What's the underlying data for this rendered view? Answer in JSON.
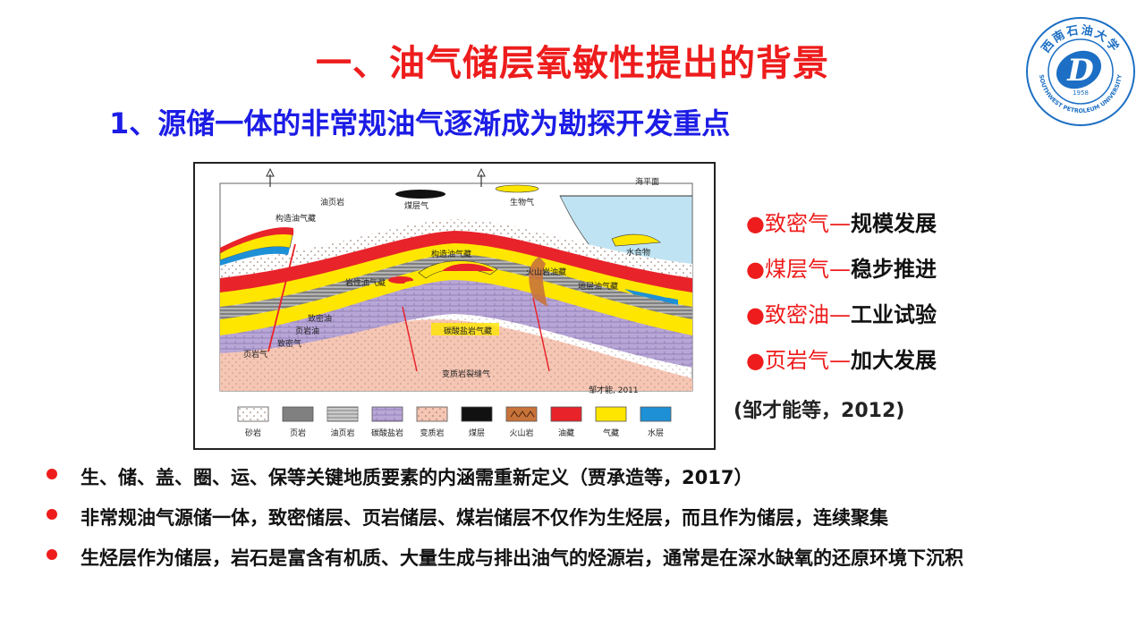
{
  "title": "一、油气储层氧敏性提出的背景",
  "subtitle": "1、源储一体的非常规油气逐渐成为勘探开发重点",
  "logo": {
    "top_text": "西南石油大学",
    "bottom_text": "SOUTHWEST PETROLEUM UNIVERSITY",
    "year": "1958",
    "letter": "D"
  },
  "figure": {
    "labels": {
      "sea_level": "海平面",
      "oil_shale": "油页岩",
      "coal_gas": "煤层气",
      "bio_gas": "生物气",
      "structural_pool_left": "构造油气藏",
      "hydrate": "水合物",
      "structural_pool_center": "构造油气藏",
      "volcanic_pool": "火山岩油藏",
      "lithologic_pool": "岩性油气藏",
      "stratigraphic_pool": "地层油气藏",
      "tight_oil": "致密油",
      "shale_oil": "页岩油",
      "tight_gas": "致密气",
      "shale_gas": "页岩气",
      "carbonate_gas": "碳酸盐岩气藏",
      "metamorphic_gas": "变质岩裂缝气",
      "author": "邹才能, 2011"
    },
    "legend": [
      {
        "label": "砂岩",
        "color": "#ffffff",
        "pattern": "dots"
      },
      {
        "label": "页岩",
        "color": "#808080",
        "pattern": "solid"
      },
      {
        "label": "油页岩",
        "color": "#a6a6a6",
        "pattern": "lines"
      },
      {
        "label": "碳酸盐岩",
        "color": "#b8a6d6",
        "pattern": "brick"
      },
      {
        "label": "变质岩",
        "color": "#f6c6b4",
        "pattern": "dots"
      },
      {
        "label": "煤层",
        "color": "#111111",
        "pattern": "solid"
      },
      {
        "label": "火山岩",
        "color": "#c8733a",
        "pattern": "carets"
      },
      {
        "label": "油藏",
        "color": "#e8232a",
        "pattern": "solid"
      },
      {
        "label": "气藏",
        "color": "#ffe600",
        "pattern": "solid"
      },
      {
        "label": "水层",
        "color": "#1e90d6",
        "pattern": "solid"
      }
    ]
  },
  "right_list": [
    {
      "red": "致密气—",
      "black": "规模发展"
    },
    {
      "red": "煤层气—",
      "black": "稳步推进"
    },
    {
      "red": "致密油—",
      "black": "工业试验"
    },
    {
      "red": "页岩气—",
      "black": "加大发展"
    }
  ],
  "dot_char": "●",
  "citation": "(邹才能等，2012)",
  "bullets": [
    "生、储、盖、圈、运、保等关键地质要素的内涵需重新定义（贾承造等，2017）",
    "非常规油气源储一体，致密储层、页岩储层、煤岩储层不仅作为生烃层，而且作为储层，连续聚集",
    "生烃层作为储层，岩石是富含有机质、大量生成与排出油气的烃源岩，通常是在深水缺氧的还原环境下沉积"
  ],
  "colors": {
    "title": "#ee1c1c",
    "subtitle": "#1c1ce6",
    "accent_red": "#ee1c1c",
    "logo_blue": "#1c6fc4"
  }
}
